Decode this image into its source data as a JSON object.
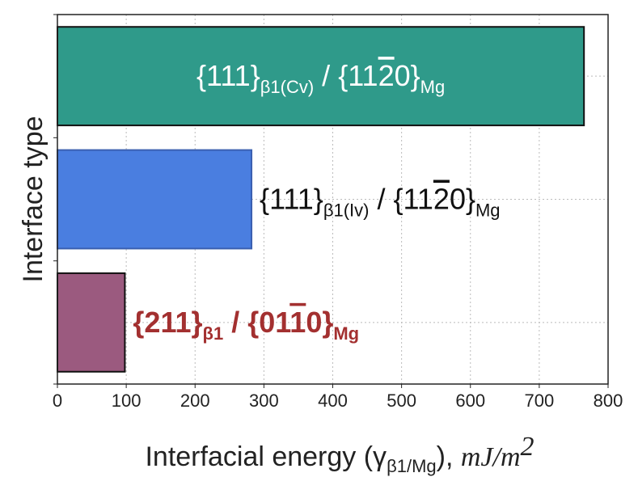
{
  "chart_data": {
    "type": "bar",
    "orientation": "horizontal",
    "categories": [
      {
        "main_a": "{111}",
        "sub_a": "β1(Cv)",
        "sep": " / ",
        "main_b": "{11",
        "bar_digit": "2",
        "main_c": "0}",
        "sub_b": "Mg"
      },
      {
        "main_a": "{111}",
        "sub_a": "β1(Iv)",
        "sep": " / ",
        "main_b": "{11",
        "bar_digit": "2",
        "main_c": "0}",
        "sub_b": "Mg"
      },
      {
        "main_a": "{211}",
        "sub_a": "β1",
        "sep": " / ",
        "main_b": "{01",
        "bar_digit": "1",
        "main_c": "0}",
        "sub_b": "Mg"
      }
    ],
    "values": [
      765,
      282,
      98
    ],
    "bar_colors": [
      "#2f9a8a",
      "#4a7ee0",
      "#9b5a7f"
    ],
    "bar_edge_colors": [
      "#111111",
      "#3a5fb0",
      "#111111"
    ],
    "label_colors": [
      "#ffffff",
      "#111111",
      "#a33030"
    ],
    "label_placement": [
      "inside",
      "outside",
      "outside"
    ],
    "label_bold": [
      false,
      false,
      true
    ],
    "xlabel": {
      "main": "Interfacial energy (γ",
      "sub": "β1/Mg",
      "close": "), ",
      "unit": "mJ/m",
      "unit_sup": "2"
    },
    "ylabel": "Interface type",
    "xlim": [
      0,
      800
    ],
    "xticks": [
      0,
      100,
      200,
      300,
      400,
      500,
      600,
      700,
      800
    ],
    "grid": true
  }
}
